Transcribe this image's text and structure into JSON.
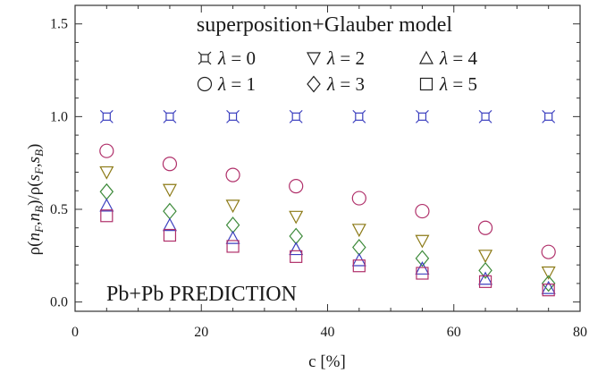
{
  "chart_data": {
    "type": "scatter",
    "title": "superposition+Glauber model",
    "annotation": "Pb+Pb PREDICTION",
    "xlabel": "c [%]",
    "ylabel": "ρ(nF,nB)/ρ(sF,sB)",
    "xlim": [
      0,
      80
    ],
    "ylim": [
      -0.05,
      1.6
    ],
    "x_ticks": [
      0,
      20,
      40,
      60,
      80
    ],
    "y_ticks": [
      0.0,
      0.5,
      1.0,
      1.5
    ],
    "x_tick_labels": [
      "0",
      "20",
      "40",
      "60",
      "80"
    ],
    "y_tick_labels": [
      "0.0",
      "0.5",
      "1.0",
      "1.5"
    ],
    "grid": false,
    "legend_position": "top-right",
    "x": [
      5,
      15,
      25,
      35,
      45,
      55,
      65,
      75
    ],
    "series": [
      {
        "name": "λ = 0",
        "marker": "hollow-square-star",
        "color": "#3b3fbf",
        "values": [
          1.0,
          1.0,
          1.0,
          1.0,
          1.0,
          1.0,
          1.0,
          1.0
        ]
      },
      {
        "name": "λ = 1",
        "marker": "circle",
        "color": "#b0306a",
        "values": [
          0.815,
          0.745,
          0.685,
          0.625,
          0.56,
          0.49,
          0.4,
          0.27
        ]
      },
      {
        "name": "λ = 2",
        "marker": "triangle-down",
        "color": "#8c7a16",
        "values": [
          0.7,
          0.605,
          0.52,
          0.46,
          0.39,
          0.33,
          0.25,
          0.16
        ]
      },
      {
        "name": "λ = 3",
        "marker": "diamond",
        "color": "#3d8a3a",
        "values": [
          0.595,
          0.49,
          0.415,
          0.355,
          0.295,
          0.235,
          0.17,
          0.1
        ]
      },
      {
        "name": "λ = 4",
        "marker": "triangle-up",
        "color": "#3b3fbf",
        "values": [
          0.52,
          0.415,
          0.345,
          0.285,
          0.225,
          0.18,
          0.125,
          0.075
        ]
      },
      {
        "name": "λ = 5",
        "marker": "square",
        "color": "#b0306a",
        "values": [
          0.465,
          0.36,
          0.3,
          0.245,
          0.195,
          0.155,
          0.11,
          0.065
        ]
      }
    ]
  }
}
